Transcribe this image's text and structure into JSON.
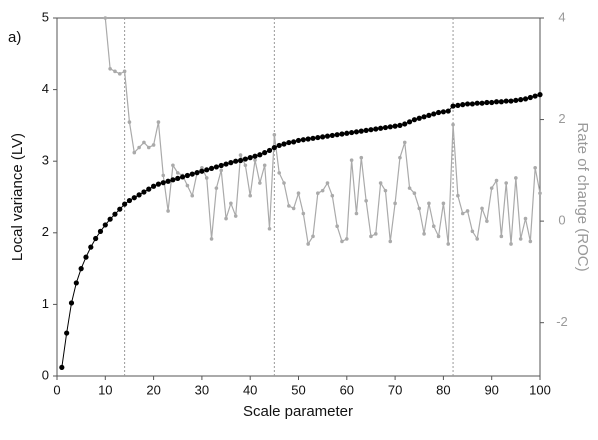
{
  "chart_data": {
    "type": "line",
    "annotation": "a)",
    "xlabel": "Scale parameter",
    "ylabel": "Local variance (LV)",
    "y2label": "Rate of change (ROC)",
    "xlim": [
      0,
      100
    ],
    "xticks": [
      0,
      10,
      20,
      30,
      40,
      50,
      60,
      70,
      80,
      90,
      100
    ],
    "ylim": [
      0,
      5
    ],
    "yticks": [
      0,
      1,
      2,
      3,
      4,
      5
    ],
    "y2lim": [
      -3.05,
      4
    ],
    "y2ticks": [
      -2,
      0,
      2,
      4
    ],
    "vlines": [
      14,
      45,
      82
    ],
    "series": [
      {
        "name": "Local variance (LV)",
        "color": "#000000",
        "axis": "y",
        "x": [
          1,
          2,
          3,
          4,
          5,
          6,
          7,
          8,
          9,
          10,
          11,
          12,
          13,
          14,
          15,
          16,
          17,
          18,
          19,
          20,
          21,
          22,
          23,
          24,
          25,
          26,
          27,
          28,
          29,
          30,
          31,
          32,
          33,
          34,
          35,
          36,
          37,
          38,
          39,
          40,
          41,
          42,
          43,
          44,
          45,
          46,
          47,
          48,
          49,
          50,
          51,
          52,
          53,
          54,
          55,
          56,
          57,
          58,
          59,
          60,
          61,
          62,
          63,
          64,
          65,
          66,
          67,
          68,
          69,
          70,
          71,
          72,
          73,
          74,
          75,
          76,
          77,
          78,
          79,
          80,
          81,
          82,
          83,
          84,
          85,
          86,
          87,
          88,
          89,
          90,
          91,
          92,
          93,
          94,
          95,
          96,
          97,
          98,
          99,
          100
        ],
        "values": [
          0.12,
          0.6,
          1.02,
          1.3,
          1.5,
          1.66,
          1.8,
          1.92,
          2.02,
          2.11,
          2.19,
          2.26,
          2.33,
          2.4,
          2.45,
          2.49,
          2.53,
          2.57,
          2.61,
          2.65,
          2.68,
          2.7,
          2.72,
          2.74,
          2.76,
          2.78,
          2.8,
          2.82,
          2.84,
          2.86,
          2.88,
          2.9,
          2.92,
          2.94,
          2.96,
          2.98,
          3.0,
          3.01,
          3.03,
          3.05,
          3.07,
          3.09,
          3.12,
          3.15,
          3.19,
          3.22,
          3.24,
          3.26,
          3.27,
          3.29,
          3.3,
          3.31,
          3.32,
          3.33,
          3.34,
          3.35,
          3.36,
          3.37,
          3.38,
          3.39,
          3.4,
          3.41,
          3.42,
          3.43,
          3.44,
          3.45,
          3.46,
          3.47,
          3.48,
          3.49,
          3.5,
          3.52,
          3.55,
          3.58,
          3.6,
          3.62,
          3.64,
          3.66,
          3.68,
          3.69,
          3.7,
          3.77,
          3.78,
          3.79,
          3.8,
          3.8,
          3.81,
          3.81,
          3.82,
          3.82,
          3.83,
          3.83,
          3.84,
          3.84,
          3.85,
          3.86,
          3.87,
          3.89,
          3.91,
          3.93
        ]
      },
      {
        "name": "Rate of change (ROC)",
        "color": "#aaaaaa",
        "axis": "y2",
        "x": [
          10,
          11,
          12,
          13,
          14,
          15,
          16,
          17,
          18,
          19,
          20,
          21,
          22,
          23,
          24,
          25,
          26,
          27,
          28,
          29,
          30,
          31,
          32,
          33,
          34,
          35,
          36,
          37,
          38,
          39,
          40,
          41,
          42,
          43,
          44,
          45,
          46,
          47,
          48,
          49,
          50,
          51,
          52,
          53,
          54,
          55,
          56,
          57,
          58,
          59,
          60,
          61,
          62,
          63,
          64,
          65,
          66,
          67,
          68,
          69,
          70,
          71,
          72,
          73,
          74,
          75,
          76,
          77,
          78,
          79,
          80,
          81,
          82,
          83,
          84,
          85,
          86,
          87,
          88,
          89,
          90,
          91,
          92,
          93,
          94,
          95,
          96,
          97,
          98,
          99,
          100
        ],
        "values": [
          4.0,
          3.0,
          2.95,
          2.9,
          2.95,
          1.95,
          1.35,
          1.45,
          1.55,
          1.45,
          1.5,
          1.95,
          0.9,
          0.2,
          1.1,
          0.95,
          0.9,
          0.7,
          0.5,
          0.95,
          1.05,
          0.85,
          -0.35,
          0.65,
          1.0,
          0.05,
          0.35,
          0.1,
          1.3,
          1.1,
          0.5,
          1.2,
          0.75,
          1.1,
          -0.15,
          1.7,
          0.95,
          0.75,
          0.3,
          0.25,
          0.55,
          0.15,
          -0.45,
          -0.3,
          0.55,
          0.6,
          0.75,
          0.5,
          -0.1,
          -0.4,
          -0.35,
          1.2,
          0.15,
          1.25,
          0.4,
          -0.3,
          -0.25,
          0.75,
          0.6,
          -0.4,
          0.35,
          1.25,
          1.55,
          0.65,
          0.55,
          0.25,
          -0.25,
          0.35,
          -0.1,
          -0.3,
          0.35,
          -0.45,
          1.9,
          0.5,
          0.15,
          0.2,
          -0.2,
          -0.35,
          0.25,
          0.0,
          0.65,
          0.8,
          -0.3,
          0.75,
          -0.45,
          0.85,
          -0.35,
          0.05,
          -0.4,
          1.05,
          0.55
        ]
      }
    ]
  }
}
